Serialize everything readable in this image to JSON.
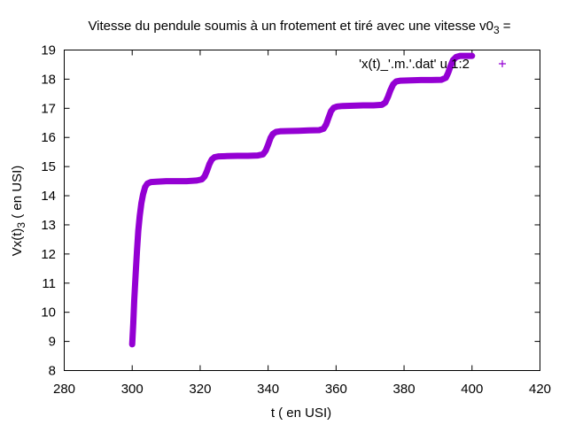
{
  "chart_data": {
    "type": "scatter",
    "title": "Vitesse du pendule soumis à un frotement et tiré avec une vitesse v0",
    "title_subscript": "3",
    "title_suffix": " =",
    "xlabel": "t ( en USI)",
    "ylabel_main": "Vx(t)",
    "ylabel_subscript": "3",
    "ylabel_suffix": " ( en USI)",
    "xlim": [
      280,
      420
    ],
    "ylim": [
      8,
      19
    ],
    "xticks": [
      280,
      300,
      320,
      340,
      360,
      380,
      400,
      420
    ],
    "yticks": [
      8,
      9,
      10,
      11,
      12,
      13,
      14,
      15,
      16,
      17,
      18,
      19
    ],
    "grid": false,
    "legend_position": "top-right",
    "series": [
      {
        "name": "'x(t)_'.m.'.dat' u 1:2",
        "color": "#9400d3",
        "marker": "plus",
        "points": [
          [
            300.0,
            8.9
          ],
          [
            300.3,
            9.6
          ],
          [
            300.6,
            10.4
          ],
          [
            301.0,
            11.3
          ],
          [
            301.4,
            12.1
          ],
          [
            301.8,
            12.8
          ],
          [
            302.2,
            13.3
          ],
          [
            302.7,
            13.75
          ],
          [
            303.2,
            14.05
          ],
          [
            303.8,
            14.3
          ],
          [
            304.5,
            14.42
          ],
          [
            305.5,
            14.47
          ],
          [
            307,
            14.48
          ],
          [
            310,
            14.5
          ],
          [
            313,
            14.5
          ],
          [
            316,
            14.5
          ],
          [
            319,
            14.52
          ],
          [
            320.5,
            14.56
          ],
          [
            321.3,
            14.66
          ],
          [
            322.0,
            14.85
          ],
          [
            322.7,
            15.08
          ],
          [
            323.4,
            15.24
          ],
          [
            324.2,
            15.32
          ],
          [
            325.5,
            15.35
          ],
          [
            328,
            15.36
          ],
          [
            331,
            15.37
          ],
          [
            334,
            15.37
          ],
          [
            337,
            15.38
          ],
          [
            338.5,
            15.42
          ],
          [
            339.3,
            15.55
          ],
          [
            340.0,
            15.75
          ],
          [
            340.7,
            15.98
          ],
          [
            341.4,
            16.12
          ],
          [
            342.3,
            16.19
          ],
          [
            343.5,
            16.21
          ],
          [
            346,
            16.22
          ],
          [
            349,
            16.23
          ],
          [
            352,
            16.24
          ],
          [
            355,
            16.25
          ],
          [
            356.3,
            16.3
          ],
          [
            357.1,
            16.45
          ],
          [
            357.8,
            16.68
          ],
          [
            358.5,
            16.9
          ],
          [
            359.3,
            17.02
          ],
          [
            360.3,
            17.06
          ],
          [
            362,
            17.08
          ],
          [
            365,
            17.09
          ],
          [
            368,
            17.1
          ],
          [
            371,
            17.1
          ],
          [
            373.5,
            17.12
          ],
          [
            374.5,
            17.2
          ],
          [
            375.3,
            17.4
          ],
          [
            376.0,
            17.62
          ],
          [
            376.8,
            17.82
          ],
          [
            377.7,
            17.92
          ],
          [
            379,
            17.95
          ],
          [
            382,
            17.96
          ],
          [
            385,
            17.97
          ],
          [
            388,
            17.97
          ],
          [
            391,
            17.98
          ],
          [
            392.3,
            18.05
          ],
          [
            393.0,
            18.22
          ],
          [
            393.7,
            18.45
          ],
          [
            394.4,
            18.65
          ],
          [
            395.3,
            18.76
          ],
          [
            396.5,
            18.8
          ],
          [
            398,
            18.8
          ],
          [
            400,
            18.8
          ]
        ]
      }
    ]
  }
}
